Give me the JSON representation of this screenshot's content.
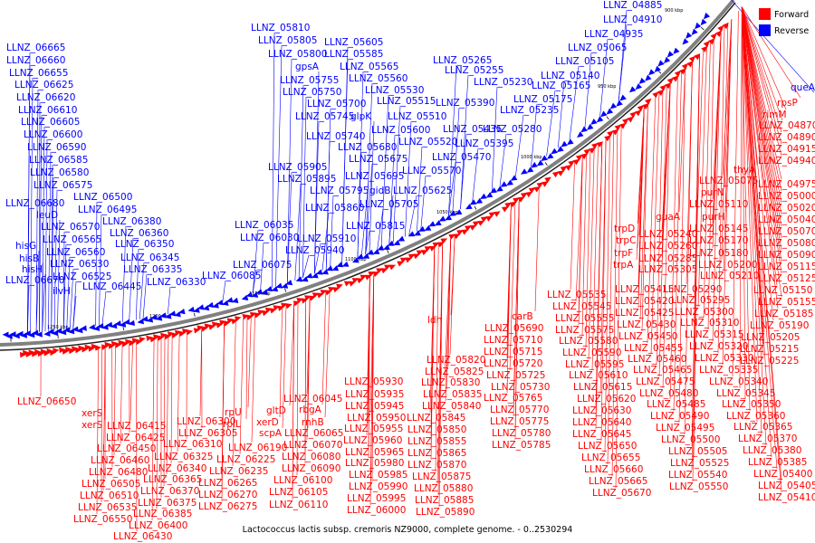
{
  "caption": "Lactococcus lactis subsp. cremoris NZ9000, complete genome. - 0..2530294",
  "legend": [
    {
      "label": "Forward",
      "color": "#ff0000"
    },
    {
      "label": "Reverse",
      "color": "#0000ff"
    }
  ],
  "colors": {
    "forward": "#ff0000",
    "reverse": "#0000ff",
    "backbone": "#808080"
  },
  "ticks": [
    "900 kbp",
    "950 kbp",
    "1000 kbp",
    "1050 kbp",
    "1100 kbp",
    "1150 kbp",
    "1200 kbp",
    "1250 kbp"
  ],
  "reverse_labels": [
    "LLNZ_04885",
    "LLNZ_04910",
    "LLNZ_04935",
    "LLNZ_05065",
    "LLNZ_05105",
    "LLNZ_05140",
    "LLNZ_05165",
    "queA",
    "LLNZ_05175",
    "LLNZ_05230",
    "LLNZ_05235",
    "LLNZ_05265",
    "LLNZ_05255",
    "LLNZ_05280",
    "LLNZ_05390",
    "LLNZ_05395",
    "LLNZ_05435",
    "LLNZ_05470",
    "LLNZ_05810",
    "LLNZ_05805",
    "LLNZ_05800",
    "gpsA",
    "LLNZ_05755",
    "LLNZ_05750",
    "LLNZ_05700",
    "LLNZ_05745",
    "glpK",
    "LLNZ_05740",
    "LLNZ_05605",
    "LLNZ_05585",
    "LLNZ_05565",
    "LLNZ_05560",
    "LLNZ_05530",
    "LLNZ_05515",
    "LLNZ_05510",
    "LLNZ_05600",
    "LLNZ_05520",
    "LLNZ_05680",
    "LLNZ_05675",
    "LLNZ_05570",
    "LLNZ_05695",
    "LLNZ_05625",
    "gidB",
    "LLNZ_05705",
    "LLNZ_05905",
    "LLNZ_05895",
    "LLNZ_05795",
    "LLNZ_05860",
    "LLNZ_05815",
    "LLNZ_05910",
    "LLNZ_05940",
    "LLNZ_06035",
    "LLNZ_06030",
    "LLNZ_06075",
    "LLNZ_06085",
    "LLNZ_06330",
    "LLNZ_06665",
    "LLNZ_06660",
    "LLNZ_06655",
    "LLNZ_06625",
    "LLNZ_06620",
    "LLNZ_06610",
    "LLNZ_06605",
    "LLNZ_06600",
    "LLNZ_06590",
    "LLNZ_06585",
    "LLNZ_06580",
    "LLNZ_06575",
    "LLNZ_06680",
    "leuD",
    "LLNZ_06570",
    "LLNZ_06565",
    "LLNZ_06560",
    "LLNZ_06530",
    "LLNZ_06525",
    "LLNZ_06670",
    "hisG",
    "hisB",
    "hisH",
    "ilvH",
    "LLNZ_06500",
    "LLNZ_06495",
    "LLNZ_06380",
    "LLNZ_06360",
    "LLNZ_06350",
    "LLNZ_06345",
    "LLNZ_06335",
    "LLNZ_06445"
  ],
  "forward_labels": [
    "rpsP",
    "rimM",
    "LLNZ_04870",
    "LLNZ_04890",
    "LLNZ_04915",
    "LLNZ_04940",
    "thyA",
    "LLNZ_04975",
    "LLNZ_05075",
    "LLNZ_05000",
    "purN",
    "LLNZ_05020",
    "LLNZ_05110",
    "purH",
    "LLNZ_05040",
    "LLNZ_05145",
    "LLNZ_05070",
    "LLNZ_05170",
    "LLNZ_05080",
    "LLNZ_05180",
    "LLNZ_05090",
    "LLNZ_05200",
    "LLNZ_05115",
    "LLNZ_05210",
    "LLNZ_05125",
    "LLNZ_05150",
    "LLNZ_05155",
    "LLNZ_05185",
    "LLNZ_05190",
    "LLNZ_05205",
    "LLNZ_05215",
    "LLNZ_05225",
    "guaA",
    "LLNZ_05240",
    "LLNZ_05260",
    "LLNZ_05285",
    "LLNZ_05305",
    "trpD",
    "trpC",
    "trpF",
    "trpA",
    "LLNZ_05290",
    "LLNZ_05295",
    "LLNZ_05300",
    "LLNZ_05310",
    "LLNZ_05315",
    "LLNZ_05320",
    "LLNZ_05330",
    "LLNZ_05335",
    "LLNZ_05340",
    "LLNZ_05345",
    "LLNZ_05350",
    "LLNZ_05360",
    "LLNZ_05365",
    "LLNZ_05370",
    "LLNZ_05380",
    "LLNZ_05385",
    "LLNZ_05400",
    "LLNZ_05405",
    "LLNZ_05410",
    "LLNZ_05415",
    "LLNZ_05420",
    "LLNZ_05425",
    "LLNZ_05430",
    "LLNZ_05450",
    "LLNZ_05455",
    "LLNZ_05460",
    "LLNZ_05465",
    "LLNZ_05475",
    "LLNZ_05480",
    "LLNZ_05485",
    "LLNZ_05490",
    "LLNZ_05495",
    "LLNZ_05500",
    "LLNZ_05505",
    "LLNZ_05525",
    "LLNZ_05540",
    "LLNZ_05550",
    "LLNZ_05535",
    "LLNZ_05545",
    "LLNZ_05555",
    "LLNZ_05575",
    "LLNZ_05580",
    "LLNZ_05590",
    "LLNZ_05595",
    "LLNZ_05610",
    "LLNZ_05615",
    "LLNZ_05620",
    "LLNZ_05630",
    "LLNZ_05640",
    "LLNZ_05645",
    "LLNZ_05650",
    "LLNZ_05655",
    "LLNZ_05660",
    "LLNZ_05665",
    "LLNZ_05670",
    "carB",
    "LLNZ_05690",
    "LLNZ_05710",
    "LLNZ_05715",
    "LLNZ_05720",
    "LLNZ_05725",
    "LLNZ_05730",
    "LLNZ_05765",
    "LLNZ_05770",
    "LLNZ_05775",
    "LLNZ_05780",
    "LLNZ_05785",
    "ldh",
    "LLNZ_05820",
    "LLNZ_05825",
    "LLNZ_05830",
    "LLNZ_05835",
    "LLNZ_05840",
    "LLNZ_05845",
    "LLNZ_05850",
    "LLNZ_05855",
    "LLNZ_05865",
    "LLNZ_05870",
    "LLNZ_05875",
    "LLNZ_05880",
    "LLNZ_05885",
    "LLNZ_05890",
    "LLNZ_05930",
    "LLNZ_05935",
    "LLNZ_05945",
    "LLNZ_05950",
    "LLNZ_05955",
    "LLNZ_05960",
    "LLNZ_05965",
    "LLNZ_05980",
    "LLNZ_05985",
    "LLNZ_05990",
    "LLNZ_05995",
    "LLNZ_06000",
    "LLNZ_06045",
    "rbgA",
    "rnhB",
    "LLNZ_06065",
    "LLNZ_06070",
    "LLNZ_06080",
    "LLNZ_06090",
    "LLNZ_06100",
    "LLNZ_06105",
    "LLNZ_06110",
    "gltD",
    "scpA",
    "xerD",
    "LLNZ_06190",
    "LLNZ_06225",
    "LLNZ_06235",
    "LLNZ_06265",
    "LLNZ_06270",
    "LLNZ_06275",
    "rpU",
    "rplL",
    "LLNZ_06300",
    "LLNZ_06305",
    "LLNZ_06310",
    "LLNZ_06325",
    "LLNZ_06340",
    "LLNZ_06365",
    "LLNZ_06370",
    "LLNZ_06375",
    "LLNZ_06385",
    "LLNZ_06400",
    "LLNZ_06430",
    "LLNZ_06415",
    "LLNZ_06425",
    "LLNZ_06450",
    "LLNZ_06460",
    "LLNZ_06480",
    "LLNZ_06505",
    "LLNZ_06510",
    "LLNZ_06535",
    "LLNZ_06550",
    "xerS",
    "xerS",
    "LLNZ_06650"
  ]
}
